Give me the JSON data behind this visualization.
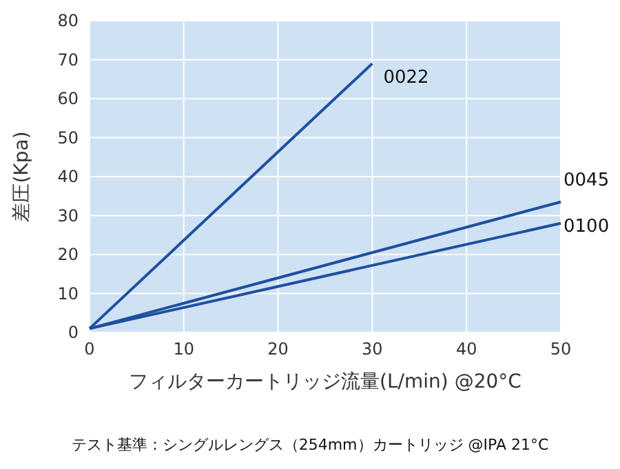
{
  "chart_data": {
    "type": "line",
    "xlabel": "フィルターカートリッジ流量(L/min) @20°C",
    "ylabel": "差圧(Kpa)",
    "xlim": [
      0,
      50
    ],
    "ylim": [
      0,
      80
    ],
    "xticks": [
      0,
      10,
      20,
      30,
      40,
      50
    ],
    "yticks": [
      0,
      10,
      20,
      30,
      40,
      50,
      60,
      70,
      80
    ],
    "grid": true,
    "series": [
      {
        "name": "0022",
        "color": "#1f4fa0",
        "x": [
          0,
          30
        ],
        "values": [
          1,
          69
        ]
      },
      {
        "name": "0045",
        "color": "#1f4fa0",
        "x": [
          0,
          50
        ],
        "values": [
          1,
          33.5
        ]
      },
      {
        "name": "0100",
        "color": "#1f4fa0",
        "x": [
          0,
          50
        ],
        "values": [
          1,
          28
        ]
      }
    ],
    "annotations": [
      "テスト基準：シングルレングス（254mm）カートリッジ @IPA 21°C"
    ]
  }
}
